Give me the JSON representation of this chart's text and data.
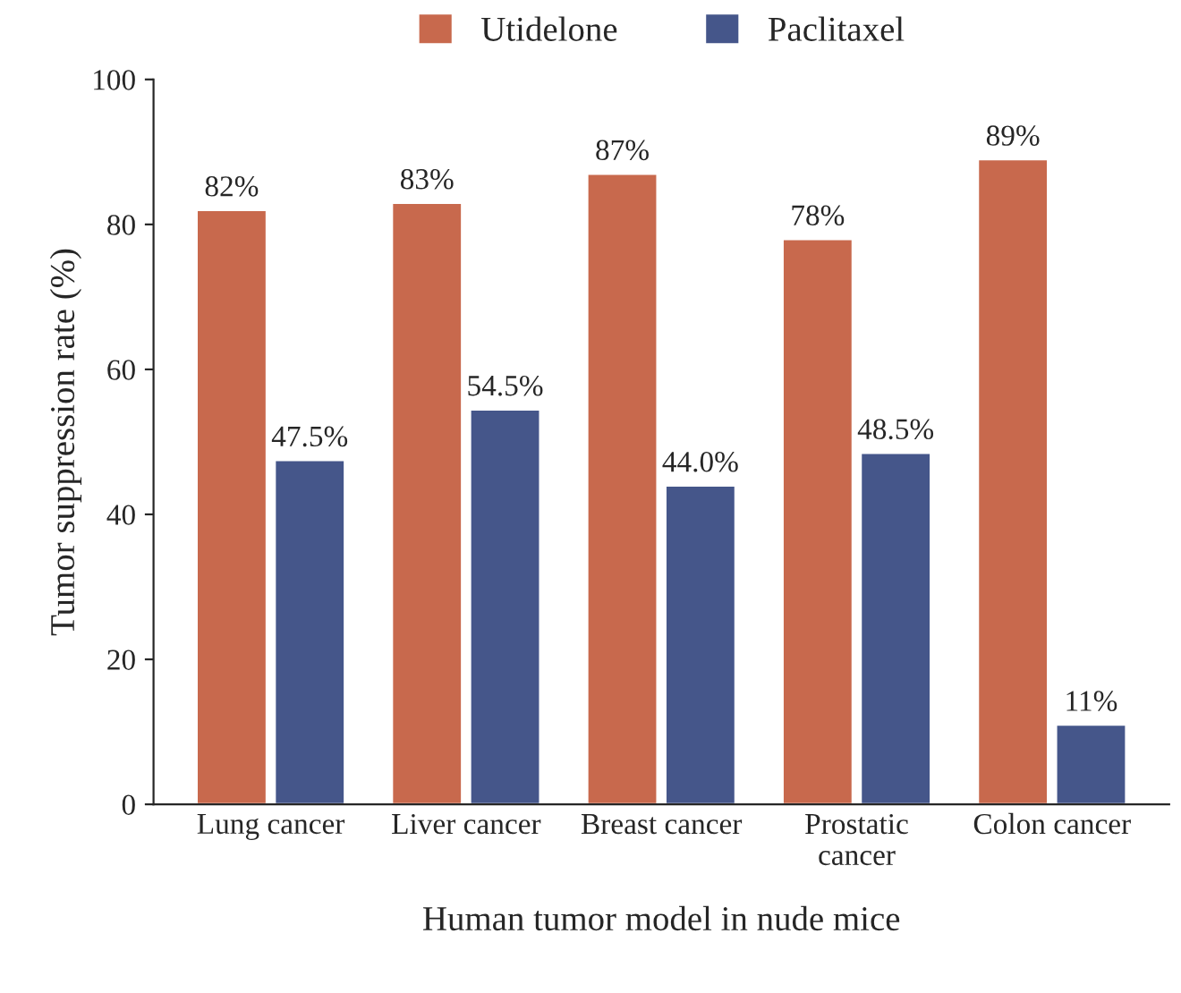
{
  "chart_data": {
    "type": "bar",
    "xlabel": "Human tumor model in nude mice",
    "ylabel": "Tumor suppression rate (%)",
    "categories": [
      "Lung cancer",
      "Liver cancer",
      "Breast cancer",
      "Prostatic\ncancer",
      "Colon cancer"
    ],
    "series": [
      {
        "name": "Utidelone",
        "color": "#c8694d",
        "values": [
          82,
          83,
          87,
          78,
          89
        ],
        "value_labels": [
          "82%",
          "83%",
          "87%",
          "78%",
          "89%"
        ]
      },
      {
        "name": "Paclitaxel",
        "color": "#45568a",
        "values": [
          47.5,
          54.5,
          44.0,
          48.5,
          11
        ],
        "value_labels": [
          "47.5%",
          "54.5%",
          "44.0%",
          "48.5%",
          "11%"
        ]
      }
    ],
    "ylim": [
      0,
      100
    ],
    "yticks": [
      0,
      20,
      40,
      60,
      80,
      100
    ],
    "grid": false,
    "legend": "top"
  }
}
